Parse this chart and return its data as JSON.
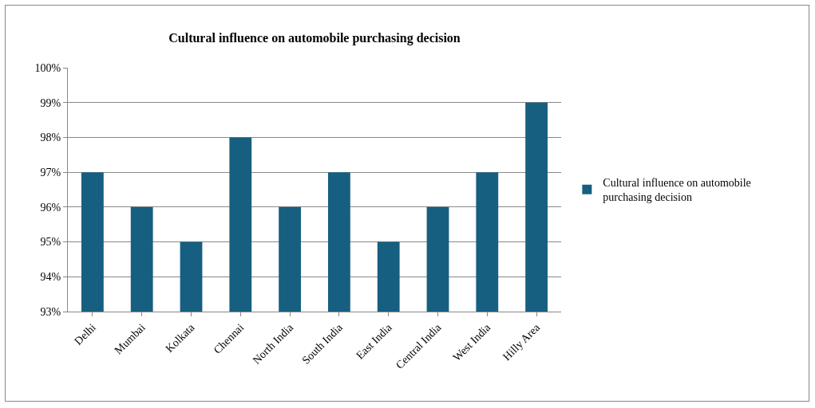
{
  "chart_data": {
    "type": "bar",
    "title": "Cultural influence on automobile purchasing decision",
    "categories": [
      "Delhi",
      "Mumbai",
      "Kolkata",
      "Chennai",
      "North India",
      "South India",
      "East India",
      "Central India",
      "West India",
      "Hilly Area"
    ],
    "series": [
      {
        "name": "Cultural influence on automobile purchasing decision",
        "color": "#175f80",
        "values": [
          97,
          96,
          95,
          98,
          96,
          97,
          95,
          96,
          97,
          99
        ]
      }
    ],
    "ylim": [
      93,
      100
    ],
    "yticks": [
      {
        "value": 93,
        "label": "93%"
      },
      {
        "value": 94,
        "label": "94%"
      },
      {
        "value": 95,
        "label": "95%"
      },
      {
        "value": 96,
        "label": "96%"
      },
      {
        "value": 97,
        "label": "97%"
      },
      {
        "value": 98,
        "label": "98%"
      },
      {
        "value": 99,
        "label": "99%"
      },
      {
        "value": 100,
        "label": "100%"
      }
    ],
    "grid": "y",
    "legend": "right"
  }
}
